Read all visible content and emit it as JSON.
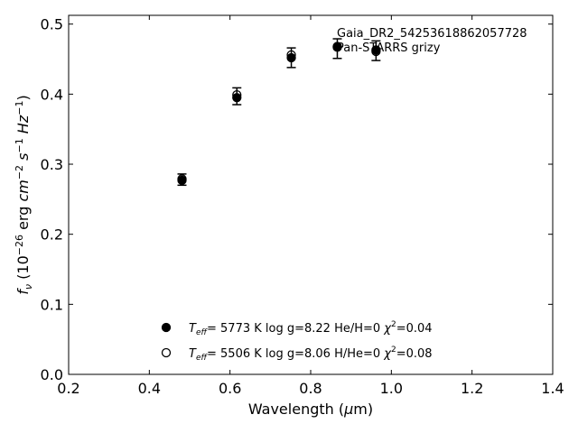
{
  "chart_data": {
    "type": "scatter",
    "xlabel": "Wavelength (μm)",
    "ylabel": "f_ν (10^-26 erg cm^-2 s^-1 Hz^-1)",
    "xlim": [
      0.2,
      1.4
    ],
    "ylim": [
      0.0,
      0.5125
    ],
    "x_ticks": [
      "0.2",
      "0.4",
      "0.6",
      "0.8",
      "1.0",
      "1.2",
      "1.4"
    ],
    "y_ticks": [
      "0.0",
      "0.1",
      "0.2",
      "0.3",
      "0.4",
      "0.5"
    ],
    "grid": false,
    "annotations": [
      "Gaia_DR2_54253618862057728",
      "Pan-STARRS grizy"
    ],
    "observed": {
      "x": [
        0.481,
        0.617,
        0.752,
        0.866,
        0.962
      ],
      "y": [
        0.278,
        0.397,
        0.452,
        0.465,
        0.462
      ],
      "yerr": [
        0.008,
        0.012,
        0.014,
        0.014,
        0.014
      ]
    },
    "series": [
      {
        "name": "Teff= 5773 K log g=8.22 He/H=0 χ²=0.04",
        "marker": "filled",
        "x": [
          0.481,
          0.617,
          0.752,
          0.866,
          0.962
        ],
        "y": [
          0.277,
          0.395,
          0.452,
          0.467,
          0.463
        ]
      },
      {
        "name": "Teff= 5506 K log g=8.06 H/He=0 χ²=0.08",
        "marker": "open",
        "x": [
          0.481,
          0.617,
          0.752,
          0.866,
          0.962
        ],
        "y": [
          0.279,
          0.399,
          0.456,
          0.468,
          0.461
        ]
      }
    ],
    "legend": {
      "placement": "bottom-center",
      "entries": [
        {
          "marker": "filled",
          "teff": "5773 K",
          "logg": "log g=8.22",
          "comp": "He/H=0",
          "chi_pre": "χ",
          "chi_val": "=0.04"
        },
        {
          "marker": "open",
          "teff": "5506 K",
          "logg": "log g=8.06",
          "comp": "H/He=0",
          "chi_pre": "χ",
          "chi_val": "=0.08"
        }
      ]
    },
    "colors": {
      "marker": "#000000",
      "axes": "#000000"
    }
  }
}
